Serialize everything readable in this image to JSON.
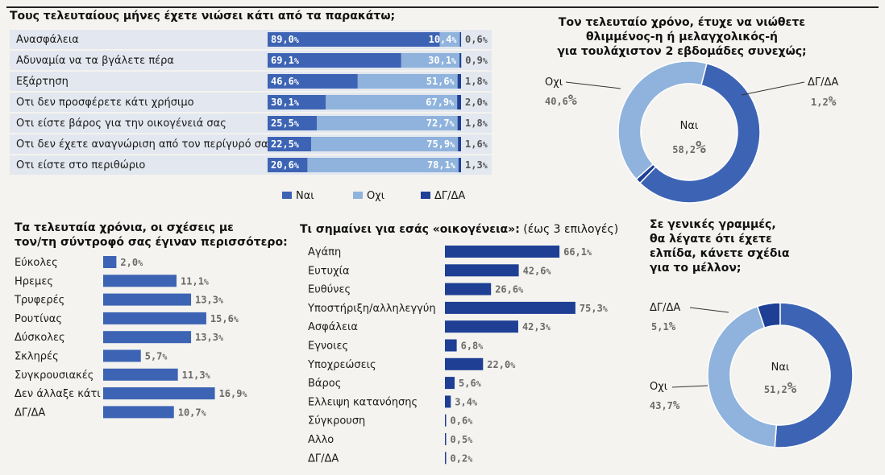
{
  "colors": {
    "nai": "#3d64b4",
    "ochi": "#8fb3dc",
    "dgda": "#1f3f95",
    "rowband": "#e3e7ef",
    "grey": "#6a6a6a"
  },
  "titles": {
    "feelings": "Τους τελευταίους μήνες έχετε νιώσει κάτι από τα παρακάτω;",
    "sad_line1": "Τον τελευταίο χρόνο, έτυχε να νιώθετε",
    "sad_line2": "θλιμμένος-η ή μελαγχολικός-ή",
    "sad_line3": "για τουλάχιστον 2 εβδομάδες συνεχώς;",
    "partner_line1": "Τα τελευταία χρόνια, οι σχέσεις με",
    "partner_line2": "τον/τη σύντροφό σας έγιναν περισσότερο:",
    "family_bold": "Τι σημαίνει για εσάς «οικογένεια»:",
    "family_normal": " (έως 3 επιλογές)",
    "hope_line1": "Σε γενικές γραμμές,",
    "hope_line2": "θα λέγατε ότι έχετε",
    "hope_line3": "ελπίδα, κάνετε σχέδια",
    "hope_line4": "για το μέλλον;"
  },
  "chart_data": [
    {
      "id": "feelings",
      "type": "bar",
      "stacked": true,
      "orientation": "horizontal",
      "categories": [
        "Ανασφάλεια",
        "Αδυναμία να τα βγάλετε πέρα",
        "Εξάρτηση",
        "Οτι δεν προσφέρετε κάτι χρήσιμο",
        "Οτι είστε βάρος για την οικογένειά σας",
        "Οτι δεν έχετε αναγνώριση από τον περίγυρό σας",
        "Οτι είστε στο περιθώριο"
      ],
      "series": [
        {
          "name": "Ναι",
          "values": [
            89.0,
            69.1,
            46.6,
            30.1,
            25.5,
            22.5,
            20.6
          ],
          "labels": [
            "89,0",
            "69,1",
            "46,6",
            "30,1",
            "25,5",
            "22,5",
            "20,6"
          ]
        },
        {
          "name": "Οχι",
          "values": [
            10.4,
            30.1,
            51.6,
            67.9,
            72.7,
            75.9,
            78.1
          ],
          "labels": [
            "10,4",
            "30,1",
            "51,6",
            "67,9",
            "72,7",
            "75,9",
            "78,1"
          ]
        },
        {
          "name": "ΔΓ/ΔΑ",
          "values": [
            0.6,
            0.9,
            1.8,
            2.0,
            1.8,
            1.6,
            1.3
          ],
          "labels": [
            "0,6",
            "0,9",
            "1,8",
            "2,0",
            "1,8",
            "1,6",
            "1,3"
          ]
        }
      ],
      "legend": [
        "Ναι",
        "Οχι",
        "ΔΓ/ΔΑ"
      ],
      "unit": "%"
    },
    {
      "id": "sad",
      "type": "pie",
      "donut": true,
      "labels": [
        "Ναι",
        "ΔΓ/ΔΑ",
        "Οχι"
      ],
      "values": [
        58.2,
        1.2,
        40.6
      ],
      "value_labels": [
        "58,2",
        "1,2",
        "40,6"
      ],
      "unit": "%"
    },
    {
      "id": "partner",
      "type": "bar",
      "orientation": "horizontal",
      "categories": [
        "Εύκολες",
        "Ηρεμες",
        "Τρυφερές",
        "Ρουτίνας",
        "Δύσκολες",
        "Σκληρές",
        "Συγκρουσιακές",
        "Δεν άλλαξε κάτι",
        "ΔΓ/ΔΑ"
      ],
      "values": [
        2.0,
        11.1,
        13.3,
        15.6,
        13.3,
        5.7,
        11.3,
        16.9,
        10.7
      ],
      "value_labels": [
        "2,0",
        "11,1",
        "13,3",
        "15,6",
        "13,3",
        "5,7",
        "11,3",
        "16,9",
        "10,7"
      ],
      "unit": "%"
    },
    {
      "id": "family",
      "type": "bar",
      "orientation": "horizontal",
      "categories": [
        "Αγάπη",
        "Ευτυχία",
        "Ευθύνες",
        "Υποστήριξη/αλληλεγγύη",
        "Ασφάλεια",
        "Εγνοιες",
        "Υποχρεώσεις",
        "Βάρος",
        "Ελλειψη κατανόησης",
        "Σύγκρουση",
        "Αλλο",
        "ΔΓ/ΔΑ"
      ],
      "values": [
        66.1,
        42.6,
        26.6,
        75.3,
        42.3,
        6.8,
        22.0,
        5.6,
        3.4,
        0.6,
        0.5,
        0.2
      ],
      "value_labels": [
        "66,1",
        "42,6",
        "26,6",
        "75,3",
        "42,3",
        "6,8",
        "22,0",
        "5,6",
        "3,4",
        "0,6",
        "0,5",
        "0,2"
      ],
      "unit": "%"
    },
    {
      "id": "hope",
      "type": "pie",
      "donut": true,
      "labels": [
        "Ναι",
        "Οχι",
        "ΔΓ/ΔΑ"
      ],
      "values": [
        51.2,
        43.7,
        5.1
      ],
      "value_labels": [
        "51,2",
        "43,7",
        "5,1"
      ],
      "unit": "%"
    }
  ]
}
